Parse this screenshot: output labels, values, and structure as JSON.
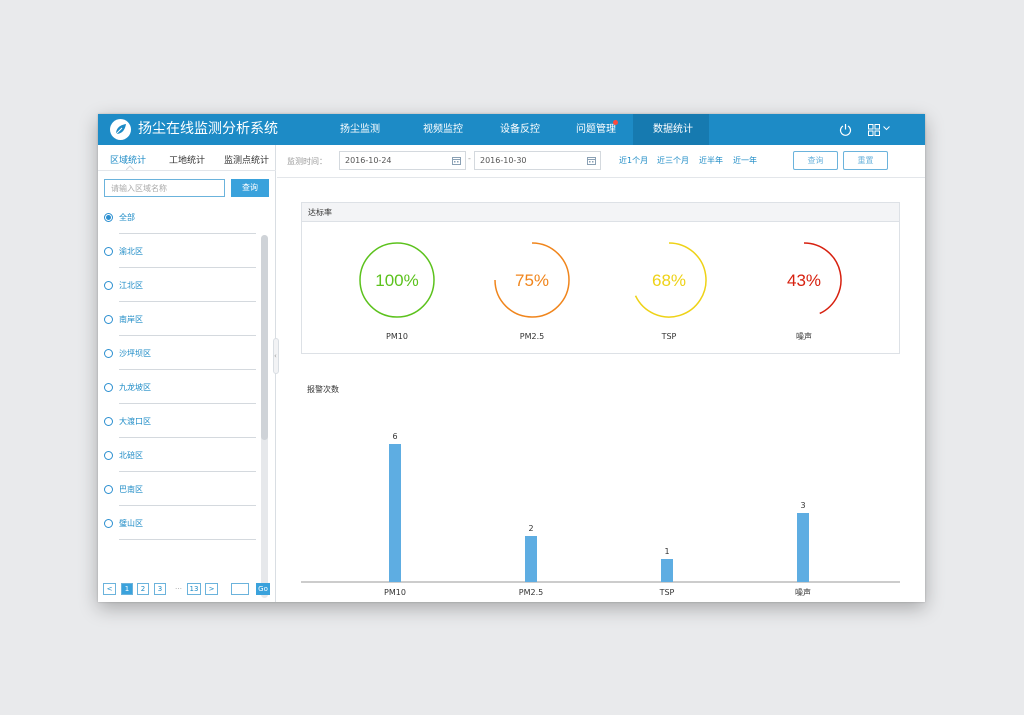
{
  "app": {
    "title": "扬尘在线监测分析系统",
    "nav": [
      "扬尘监测",
      "视频监控",
      "设备反控",
      "问题管理",
      "数据统计"
    ],
    "active_nav": "数据统计",
    "notify_nav": "问题管理"
  },
  "sidebar": {
    "tabs": [
      "区域统计",
      "工地统计",
      "监测点统计"
    ],
    "active_tab": "区域统计",
    "search_placeholder": "请输入区域名称",
    "search_button": "查询",
    "regions": [
      "全部",
      "渝北区",
      "江北区",
      "南岸区",
      "沙坪坝区",
      "九龙坡区",
      "大渡口区",
      "北碚区",
      "巴南区",
      "璧山区"
    ],
    "selected_region": "全部",
    "pagination": {
      "prev": "<",
      "pages": [
        "1",
        "2",
        "3"
      ],
      "ellipsis": "…",
      "last": "13",
      "next": ">",
      "current": "1",
      "go": "Go"
    }
  },
  "filter": {
    "label": "监测时间：",
    "start_date": "2016-10-24",
    "separator": "-",
    "end_date": "2016-10-30",
    "quick_ranges": [
      "近1个月",
      "近三个月",
      "近半年",
      "近一年"
    ],
    "query_button": "查询",
    "reset_button": "重置"
  },
  "compliance": {
    "title": "达标率",
    "gauges": [
      {
        "label": "PM10",
        "percent": 100,
        "text": "100%",
        "color": "#5cc21d"
      },
      {
        "label": "PM2.5",
        "percent": 75,
        "text": "75%",
        "color": "#f0851c"
      },
      {
        "label": "TSP",
        "percent": 68,
        "text": "68%",
        "color": "#eed217"
      },
      {
        "label": "噪声",
        "percent": 43,
        "text": "43%",
        "color": "#d7200f"
      }
    ]
  },
  "chart_data": {
    "type": "bar",
    "title": "报警次数",
    "categories": [
      "PM10",
      "PM2.5",
      "TSP",
      "噪声"
    ],
    "values": [
      6,
      2,
      1,
      3
    ],
    "color": "#5eade2",
    "grid": false
  },
  "colors": {
    "brand": "#1d8bc6",
    "accent": "#3aa2dc"
  }
}
